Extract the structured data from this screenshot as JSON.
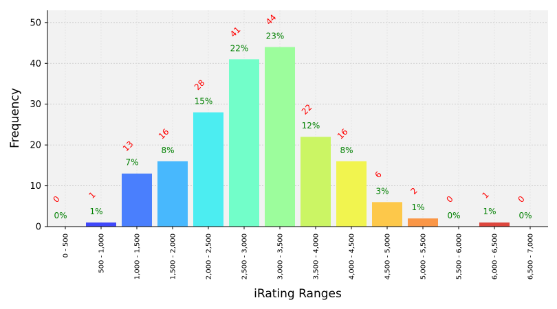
{
  "chart_data": {
    "type": "bar",
    "xlabel": "iRating Ranges",
    "ylabel": "Frequency",
    "ylim": [
      0,
      53
    ],
    "yticks": [
      0,
      10,
      20,
      30,
      40,
      50
    ],
    "grid": true,
    "categories": [
      "0 - 500",
      "500 - 1,000",
      "1,000 - 1,500",
      "1,500 - 2,000",
      "2,000 - 2,500",
      "2,500 - 3,000",
      "3,000 - 3,500",
      "3,500 - 4,000",
      "4,000 - 4,500",
      "4,500 - 5,000",
      "5,000 - 5,500",
      "5,500 - 6,000",
      "6,000 - 6,500",
      "6,500 - 7,000"
    ],
    "values": [
      0,
      1,
      13,
      16,
      28,
      41,
      44,
      22,
      16,
      6,
      2,
      0,
      1,
      0
    ],
    "count_labels": [
      "0",
      "1",
      "13",
      "16",
      "28",
      "41",
      "44",
      "22",
      "16",
      "6",
      "2",
      "0",
      "1",
      "0"
    ],
    "percent_labels": [
      "0%",
      "1%",
      "7%",
      "8%",
      "15%",
      "22%",
      "23%",
      "12%",
      "8%",
      "3%",
      "1%",
      "0%",
      "1%",
      "0%"
    ],
    "colors": [
      "#3b2cf5",
      "#3f48fa",
      "#4a7ffd",
      "#48b8fd",
      "#4cedf1",
      "#72fec9",
      "#9cfd9c",
      "#cbf564",
      "#f1f44f",
      "#fdc84a",
      "#fa9646",
      "#f46640",
      "#dd463d",
      "#b52a25"
    ]
  }
}
